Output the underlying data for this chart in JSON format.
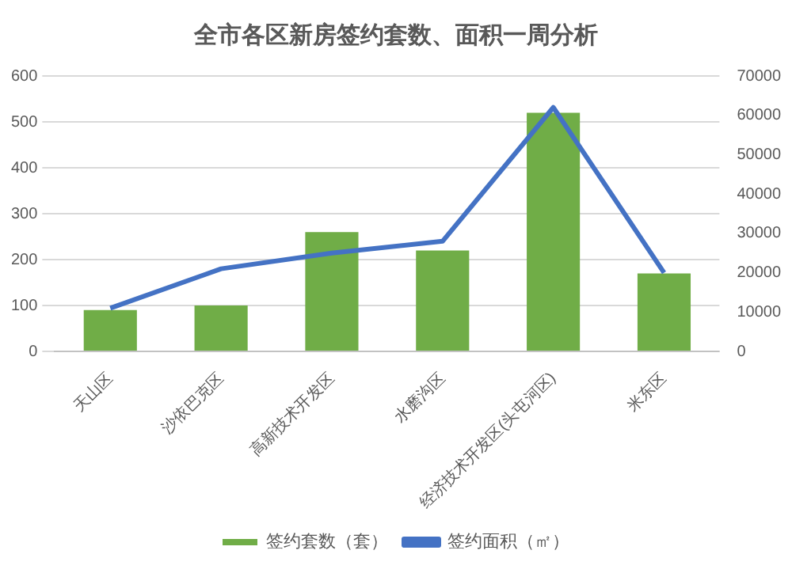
{
  "chart_data": {
    "type": "bar",
    "title": "全市各区新房签约套数、面积一周分析",
    "categories": [
      "天山区",
      "沙依巴克区",
      "高新技术开发区",
      "水磨沟区",
      "经济技术开发区(头屯河区)",
      "米东区"
    ],
    "series": [
      {
        "name": "签约套数（套）",
        "color": "#70ad47",
        "values": [
          90,
          100,
          260,
          220,
          520,
          170
        ]
      },
      {
        "name": "签约面积（㎡）",
        "type": "line",
        "axis": "y2",
        "color": "#4472c4",
        "values": [
          11000,
          21000,
          25000,
          28000,
          62000,
          20000
        ]
      }
    ],
    "ylim": [
      0,
      600
    ],
    "yticks": [
      0,
      100,
      200,
      300,
      400,
      500,
      600
    ],
    "y2lim": [
      0,
      70000
    ],
    "y2ticks": [
      0,
      10000,
      20000,
      30000,
      40000,
      50000,
      60000,
      70000
    ],
    "grid": "y",
    "legend": "bottom",
    "marker": "none"
  }
}
